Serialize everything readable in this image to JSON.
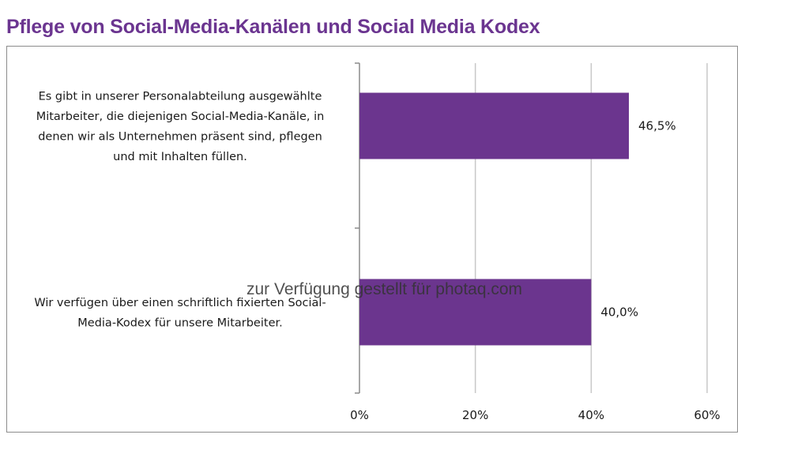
{
  "title": "Pflege von Social-Media-Kanälen und Social Media Kodex",
  "watermark": "zur Verfügung gestellt für photaq.com",
  "colors": {
    "bar": "#6b358e",
    "title": "#6b3590",
    "grid": "#c8c8c8"
  },
  "chart_data": {
    "type": "bar",
    "orientation": "horizontal",
    "title": "Pflege von Social-Media-Kanälen und Social Media Kodex",
    "categories": [
      "Es gibt in unserer Personalabteilung ausgewählte Mitarbeiter, die diejenigen Social-Media-Kanäle, in denen wir als Unternehmen präsent sind, pflegen und mit Inhalten füllen.",
      "Wir verfügen über einen schriftlich fixierten Social-Media-Kodex für unsere Mitarbeiter."
    ],
    "category_lines": [
      [
        "Es gibt in unserer Personalabteilung ausgewählte",
        "Mitarbeiter, die diejenigen Social-Media-Kanäle, in",
        "denen wir als Unternehmen präsent sind, pflegen",
        "und mit Inhalten füllen."
      ],
      [
        "Wir verfügen über einen schriftlich fixierten Social-",
        "Media-Kodex für unsere Mitarbeiter."
      ]
    ],
    "values": [
      46.5,
      40.0
    ],
    "data_labels": [
      "46,5%",
      "40,0%"
    ],
    "xlim": [
      0,
      60
    ],
    "xticks": [
      0,
      20,
      40,
      60
    ],
    "xtick_labels": [
      "0%",
      "20%",
      "40%",
      "60%"
    ],
    "grid": true,
    "legend": "none"
  }
}
